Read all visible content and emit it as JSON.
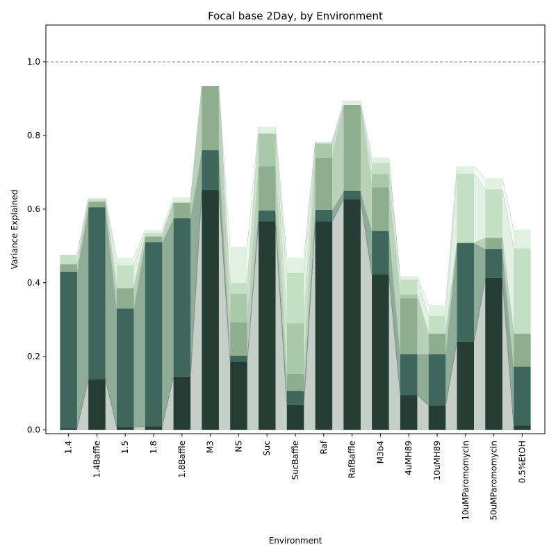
{
  "chart_data": {
    "type": "bar",
    "title": "Focal base 2Day, by Environment",
    "xlabel": "Environment",
    "ylabel": "Variance Explained",
    "ylim": [
      -0.01,
      1.1
    ],
    "yticks": [
      0.0,
      0.2,
      0.4,
      0.6,
      0.8,
      1.0
    ],
    "reference_line": 1.0,
    "reference_line_color": "#808080",
    "grid": false,
    "legend": "none",
    "categories": [
      "1.4",
      "1.4Baffle",
      "1.5",
      "1.8",
      "1.8Baffle",
      "M3",
      "NS",
      "Suc",
      "SucBaffle",
      "Raf",
      "RafBaffle",
      "M3b4",
      "4uMH89",
      "10uMH89",
      "10uMParomomycin",
      "50uMParomomycin",
      "0.5%EtOH"
    ],
    "series": [
      {
        "color": "#253d34",
        "values": [
          0.005,
          0.138,
          0.007,
          0.01,
          0.145,
          0.653,
          0.186,
          0.567,
          0.068,
          0.567,
          0.627,
          0.423,
          0.095,
          0.067,
          0.24,
          0.413,
          0.012
        ]
      },
      {
        "color": "#3e665a",
        "values": [
          0.43,
          0.605,
          0.33,
          0.51,
          0.575,
          0.76,
          0.202,
          0.596,
          0.106,
          0.598,
          0.649,
          0.541,
          0.206,
          0.206,
          0.508,
          0.492,
          0.172
        ]
      },
      {
        "color": "#8eae8f",
        "values": [
          0.45,
          0.62,
          0.385,
          0.525,
          0.617,
          0.934,
          0.292,
          0.716,
          0.153,
          0.74,
          0.883,
          0.659,
          0.358,
          0.261,
          0.508,
          0.522,
          0.261
        ]
      },
      {
        "color": "#a9c9aa",
        "values": [
          0.451,
          0.621,
          0.386,
          0.526,
          0.618,
          0.934,
          0.37,
          0.805,
          0.29,
          0.778,
          0.883,
          0.695,
          0.368,
          0.262,
          0.508,
          0.522,
          0.262
        ]
      },
      {
        "color": "#c3e0c5",
        "values": [
          0.475,
          0.627,
          0.448,
          0.535,
          0.62,
          0.934,
          0.4,
          0.806,
          0.426,
          0.78,
          0.883,
          0.725,
          0.408,
          0.31,
          0.696,
          0.654,
          0.493
        ]
      },
      {
        "color": "#e0f0e1",
        "values": [
          0.476,
          0.63,
          0.468,
          0.543,
          0.632,
          0.934,
          0.497,
          0.823,
          0.468,
          0.783,
          0.895,
          0.74,
          0.418,
          0.339,
          0.716,
          0.684,
          0.544
        ]
      }
    ]
  }
}
